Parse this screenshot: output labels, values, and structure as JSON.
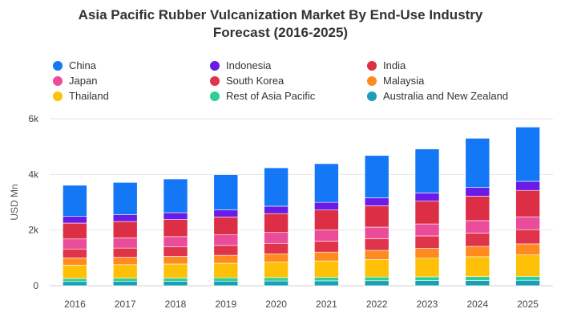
{
  "title_line1": "Asia Pacific Rubber Vulcanization Market By End-Use Industry",
  "title_line2": "Forecast (2016-2025)",
  "chart_data": {
    "type": "bar",
    "stacked": true,
    "ylabel": "USD Mn",
    "ylim": [
      0,
      6000
    ],
    "yticks": [
      0,
      2000,
      4000,
      6000
    ],
    "ytick_labels": [
      "0",
      "2k",
      "4k",
      "6k"
    ],
    "grid": true,
    "legend_position": "top",
    "categories": [
      "2016",
      "2017",
      "2018",
      "2019",
      "2020",
      "2021",
      "2022",
      "2023",
      "2024",
      "2025"
    ],
    "series": [
      {
        "name": "Australia and New Zealand",
        "color": "#1a9fb5",
        "values": [
          150,
          155,
          160,
          165,
          170,
          175,
          180,
          185,
          190,
          195
        ]
      },
      {
        "name": "Rest of Asia Pacific",
        "color": "#2ecf94",
        "values": [
          110,
          112,
          115,
          118,
          122,
          126,
          130,
          134,
          138,
          142
        ]
      },
      {
        "name": "Thailand",
        "color": "#ffc107",
        "values": [
          480,
          490,
          505,
          525,
          555,
          590,
          630,
          670,
          715,
          770
        ]
      },
      {
        "name": "Malaysia",
        "color": "#ff8a1f",
        "values": [
          260,
          265,
          275,
          285,
          300,
          315,
          330,
          350,
          370,
          395
        ]
      },
      {
        "name": "South Korea",
        "color": "#e0344b",
        "values": [
          320,
          330,
          340,
          355,
          375,
          395,
          420,
          450,
          480,
          515
        ]
      },
      {
        "name": "Japan",
        "color": "#ea4c9a",
        "values": [
          360,
          365,
          370,
          380,
          390,
          400,
          415,
          430,
          445,
          460
        ]
      },
      {
        "name": "India",
        "color": "#dc2f45",
        "values": [
          570,
          590,
          610,
          640,
          680,
          720,
          770,
          820,
          880,
          950
        ]
      },
      {
        "name": "Indonesia",
        "color": "#6a1be8",
        "values": [
          240,
          245,
          250,
          255,
          265,
          275,
          285,
          295,
          310,
          325
        ]
      },
      {
        "name": "China",
        "color": "#1477f5",
        "values": [
          1120,
          1160,
          1210,
          1270,
          1380,
          1390,
          1520,
          1580,
          1770,
          1950
        ]
      }
    ]
  },
  "legend": [
    {
      "label": "China",
      "color": "#1477f5"
    },
    {
      "label": "Indonesia",
      "color": "#6a1be8"
    },
    {
      "label": "India",
      "color": "#dc2f45"
    },
    {
      "label": "Japan",
      "color": "#ea4c9a"
    },
    {
      "label": "South Korea",
      "color": "#e0344b"
    },
    {
      "label": "Malaysia",
      "color": "#ff8a1f"
    },
    {
      "label": "Thailand",
      "color": "#ffc107"
    },
    {
      "label": "Rest of Asia Pacific",
      "color": "#2ecf94"
    },
    {
      "label": "Australia and New Zealand",
      "color": "#1a9fb5"
    }
  ]
}
